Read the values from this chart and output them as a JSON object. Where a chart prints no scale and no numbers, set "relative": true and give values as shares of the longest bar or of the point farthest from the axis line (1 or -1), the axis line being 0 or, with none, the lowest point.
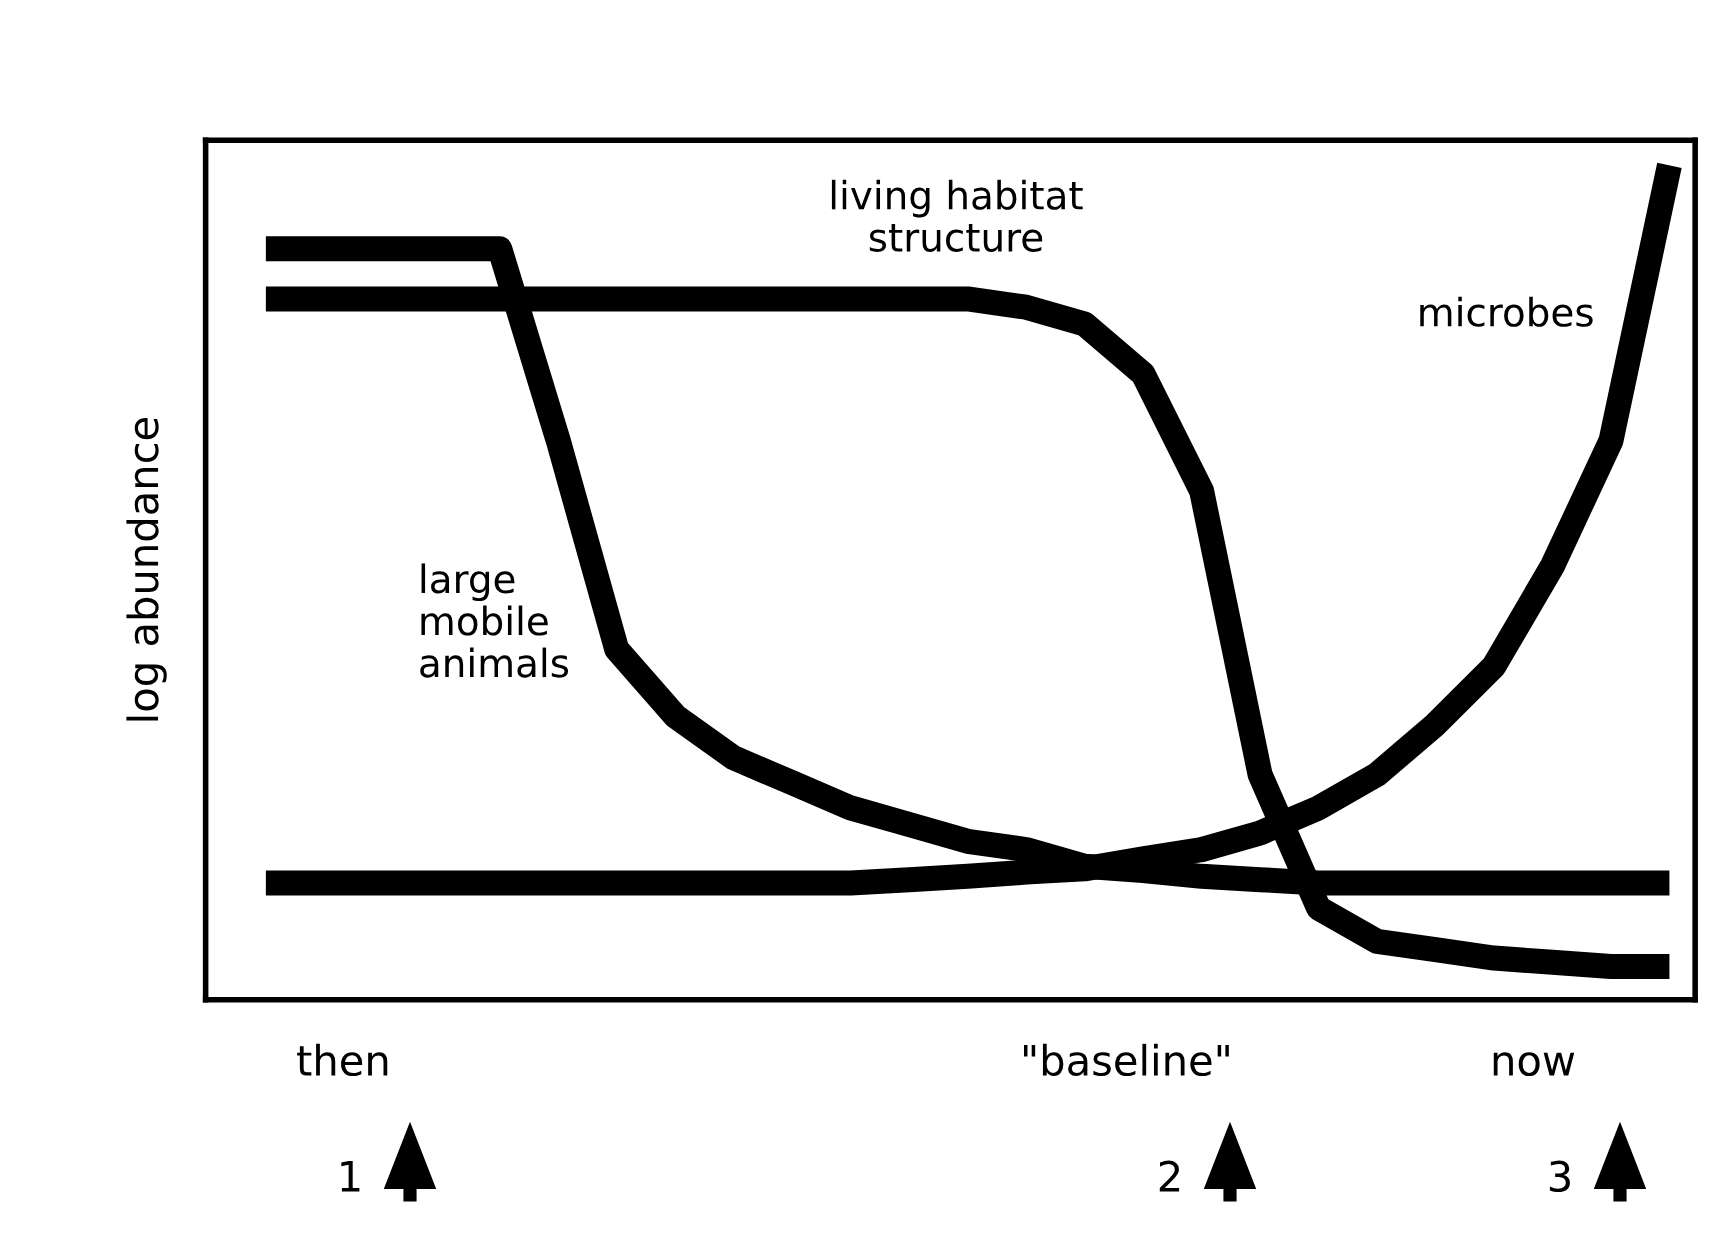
{
  "chart_data": {
    "type": "line",
    "relative": true,
    "ylabel": "log abundance",
    "legend": false,
    "categories": [
      null,
      null,
      null,
      null,
      null,
      null,
      null,
      null,
      null,
      null,
      null,
      null,
      null,
      null,
      null,
      null,
      null,
      null,
      null,
      null,
      null,
      null,
      null,
      null,
      null
    ],
    "series": [
      {
        "name": "large\nmobile\nanimals",
        "color": "#000000",
        "values": [
          0.9,
          0.9,
          0.9,
          0.9,
          0.9,
          0.67,
          0.42,
          0.34,
          0.29,
          0.26,
          0.23,
          0.21,
          0.19,
          0.18,
          0.16,
          0.155,
          0.148,
          0.144,
          0.14,
          0.14,
          0.14,
          0.14,
          0.14,
          0.14,
          0.14
        ]
      },
      {
        "name": "living habitat\nstructure",
        "color": "#000000",
        "values": [
          0.84,
          0.84,
          0.84,
          0.84,
          0.84,
          0.84,
          0.84,
          0.84,
          0.84,
          0.84,
          0.84,
          0.84,
          0.84,
          0.83,
          0.81,
          0.75,
          0.61,
          0.27,
          0.11,
          0.07,
          0.06,
          0.05,
          0.045,
          0.04,
          0.04
        ]
      },
      {
        "name": "microbes",
        "color": "#000000",
        "values": [
          0.14,
          0.14,
          0.14,
          0.14,
          0.14,
          0.14,
          0.14,
          0.14,
          0.14,
          0.14,
          0.14,
          0.144,
          0.148,
          0.153,
          0.157,
          0.169,
          0.18,
          0.2,
          0.23,
          0.27,
          0.33,
          0.4,
          0.52,
          0.67,
          1
        ]
      }
    ],
    "annotations": [
      "then",
      "1",
      "\"baseline\"",
      "2",
      "now",
      "3"
    ]
  }
}
